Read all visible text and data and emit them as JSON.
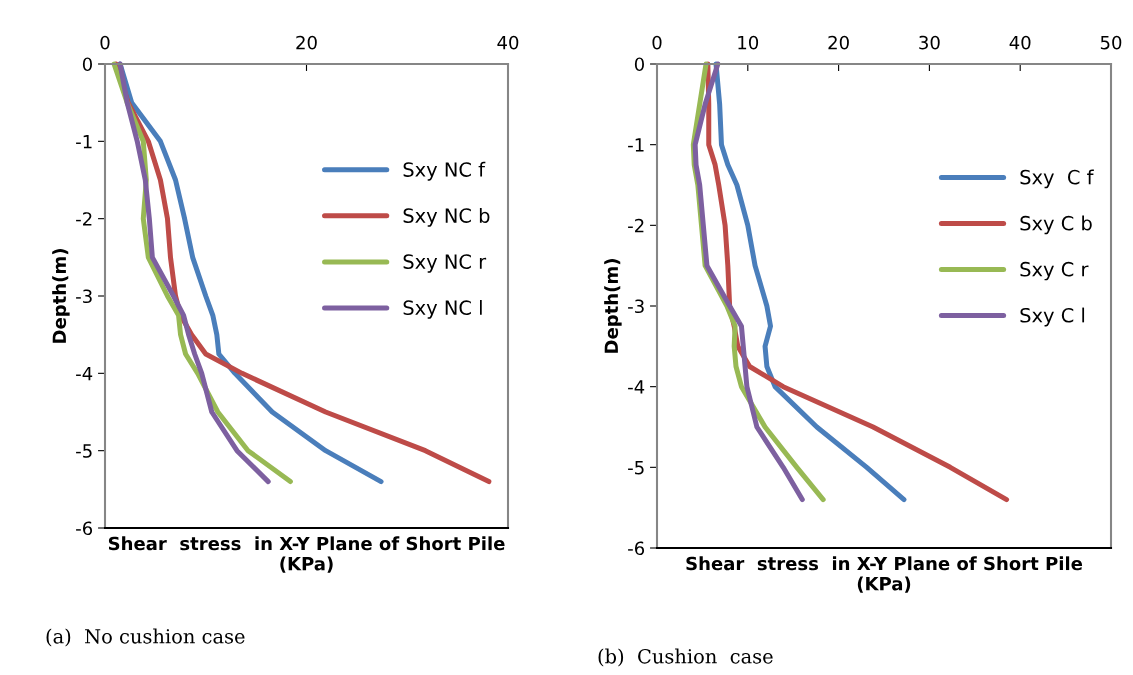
{
  "chart_data": [
    {
      "type": "line",
      "xlabel": "Shear  stress  in X-Y Plane of Short Pile\n(KPa)",
      "ylabel": "Depth(m)",
      "xlim": [
        0,
        40
      ],
      "xticks": [
        0,
        20,
        40
      ],
      "ylim": [
        -6,
        0
      ],
      "yticks": [
        -6,
        -5,
        -4,
        -3,
        -2,
        -1,
        0
      ],
      "legend": "right",
      "grid": false,
      "marker": "none",
      "line_style": "solid",
      "annotations": [
        "(a)  No cushion case"
      ],
      "series": [
        {
          "name": "Sxy NC f",
          "color": "#4a7ebb",
          "x": [
            1.5,
            2.65,
            5.5,
            7.0,
            7.9,
            8.7,
            10.0,
            10.7,
            11.1,
            11.3,
            12.9,
            16.6,
            21.9,
            27.4
          ],
          "values": [
            0,
            -0.5,
            -1,
            -1.5,
            -2,
            -2.5,
            -3,
            -3.25,
            -3.5,
            -3.75,
            -4,
            -4.5,
            -5,
            -5.4
          ]
        },
        {
          "name": "Sxy NC b",
          "color": "#be4b48",
          "x": [
            1.1,
            2.3,
            4.3,
            5.5,
            6.2,
            6.5,
            7.0,
            7.5,
            8.6,
            10.0,
            13.6,
            21.9,
            31.8,
            38.1
          ],
          "values": [
            0,
            -0.5,
            -1,
            -1.5,
            -2,
            -2.5,
            -3,
            -3.25,
            -3.5,
            -3.75,
            -4,
            -4.5,
            -5,
            -5.4
          ]
        },
        {
          "name": "Sxy NC r",
          "color": "#98b954",
          "x": [
            0.9,
            2.2,
            3.8,
            4.1,
            3.8,
            4.3,
            6.2,
            7.3,
            7.5,
            8.0,
            9.2,
            11.2,
            14.2,
            18.4
          ],
          "values": [
            0,
            -0.5,
            -1,
            -1.5,
            -2,
            -2.5,
            -3,
            -3.25,
            -3.5,
            -3.75,
            -4,
            -4.5,
            -5,
            -5.4
          ]
        },
        {
          "name": "Sxy NC l",
          "color": "#7d60a0",
          "x": [
            1.5,
            2.2,
            3.2,
            4.0,
            4.4,
            4.7,
            6.8,
            7.8,
            8.3,
            8.9,
            9.6,
            10.6,
            13.1,
            16.2
          ],
          "values": [
            0,
            -0.5,
            -1,
            -1.5,
            -2,
            -2.5,
            -3,
            -3.25,
            -3.5,
            -3.75,
            -4,
            -4.5,
            -5,
            -5.4
          ]
        }
      ]
    },
    {
      "type": "line",
      "xlabel": "Shear  stress  in X-Y Plane of Short Pile\n(KPa)",
      "ylabel": "Depth(m)",
      "xlim": [
        0,
        50
      ],
      "xticks": [
        0,
        10,
        20,
        30,
        40,
        50
      ],
      "ylim": [
        -6,
        0
      ],
      "yticks": [
        -6,
        -5,
        -4,
        -3,
        -2,
        -1,
        0
      ],
      "legend": "right",
      "grid": false,
      "marker": "none",
      "line_style": "solid",
      "annotations": [
        "(b)  Cushion  case"
      ],
      "series": [
        {
          "name": "Sxy  C f",
          "color": "#4a7ebb",
          "x": [
            6.5,
            6.9,
            7.1,
            7.8,
            8.8,
            10.0,
            10.8,
            12.1,
            12.5,
            11.9,
            12.1,
            13.0,
            17.6,
            23.1,
            27.2
          ],
          "values": [
            0,
            -0.5,
            -1,
            -1.25,
            -1.5,
            -2,
            -2.5,
            -3,
            -3.25,
            -3.5,
            -3.75,
            -4,
            -4.5,
            -5,
            -5.4
          ]
        },
        {
          "name": "Sxy C b",
          "color": "#be4b48",
          "x": [
            5.6,
            5.7,
            5.7,
            6.4,
            6.8,
            7.5,
            7.8,
            8.0,
            8.5,
            8.9,
            10.2,
            13.9,
            23.8,
            32.3,
            38.5
          ],
          "values": [
            0,
            -0.5,
            -1,
            -1.25,
            -1.5,
            -2,
            -2.5,
            -3,
            -3.25,
            -3.5,
            -3.75,
            -4,
            -4.5,
            -5,
            -5.4
          ]
        },
        {
          "name": "Sxy C r",
          "color": "#98b954",
          "x": [
            5.4,
            4.7,
            4.0,
            4.1,
            4.5,
            4.9,
            5.3,
            7.7,
            8.6,
            8.5,
            8.7,
            9.3,
            11.9,
            15.4,
            18.3
          ],
          "values": [
            0,
            -0.5,
            -1,
            -1.25,
            -1.5,
            -2,
            -2.5,
            -3,
            -3.25,
            -3.5,
            -3.75,
            -4,
            -4.5,
            -5,
            -5.4
          ]
        },
        {
          "name": "Sxy C l",
          "color": "#7d60a0",
          "x": [
            6.7,
            5.3,
            4.2,
            4.3,
            4.7,
            5.1,
            5.5,
            8.0,
            9.3,
            9.5,
            9.7,
            9.9,
            11.0,
            13.9,
            16.0
          ],
          "values": [
            0,
            -0.5,
            -1,
            -1.25,
            -1.5,
            -2,
            -2.5,
            -3,
            -3.25,
            -3.5,
            -3.75,
            -4,
            -4.5,
            -5,
            -5.4
          ]
        }
      ]
    }
  ]
}
